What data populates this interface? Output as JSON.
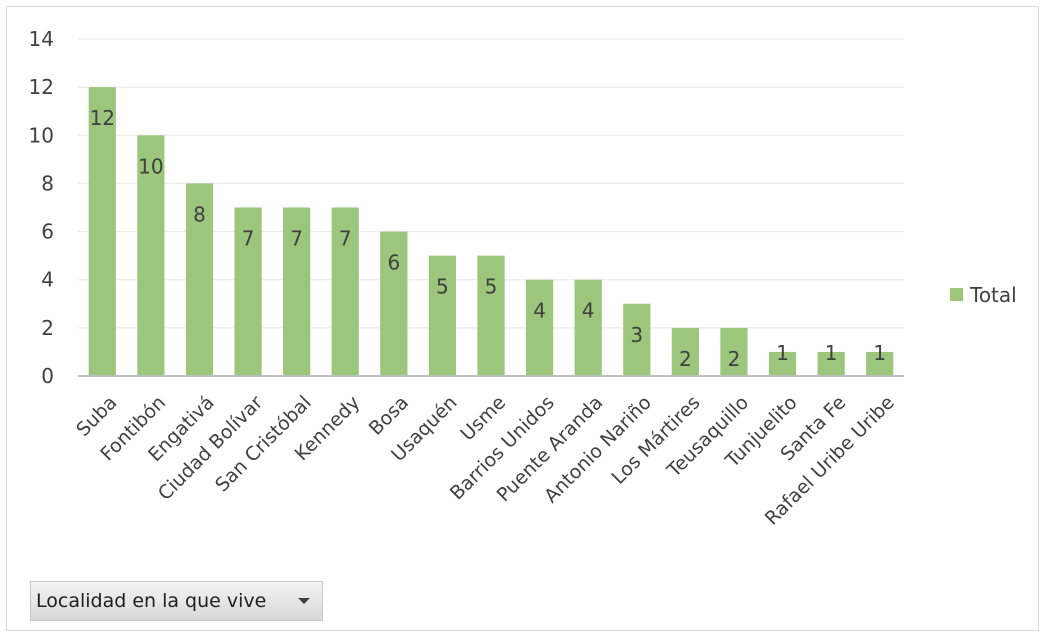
{
  "chart_data": {
    "type": "bar",
    "categories": [
      "Suba",
      "Fontibón",
      "Engativá",
      "Ciudad Bolívar",
      "San Cristóbal",
      "Kennedy",
      "Bosa",
      "Usaquén",
      "Usme",
      "Barrios Unidos",
      "Puente Aranda",
      "Antonio Nariño",
      "Los Mártires",
      "Teusaquillo",
      "Tunjuelito",
      "Santa Fe",
      "Rafael Uribe Uribe"
    ],
    "series": [
      {
        "name": "Total",
        "values": [
          12,
          10,
          8,
          7,
          7,
          7,
          6,
          5,
          5,
          4,
          4,
          3,
          2,
          2,
          1,
          1,
          1
        ]
      }
    ],
    "yticks": [
      "0",
      "2",
      "4",
      "6",
      "8",
      "10",
      "12",
      "14"
    ],
    "ylim": [
      0,
      14
    ],
    "grid": true,
    "legend": "right",
    "color": "#9bc67c",
    "axis_color": "#bfbfbf",
    "grid_color": "#e8e8e8"
  },
  "field_button": {
    "label": "Localidad en la que vive",
    "icon": "dropdown-arrow-icon"
  }
}
